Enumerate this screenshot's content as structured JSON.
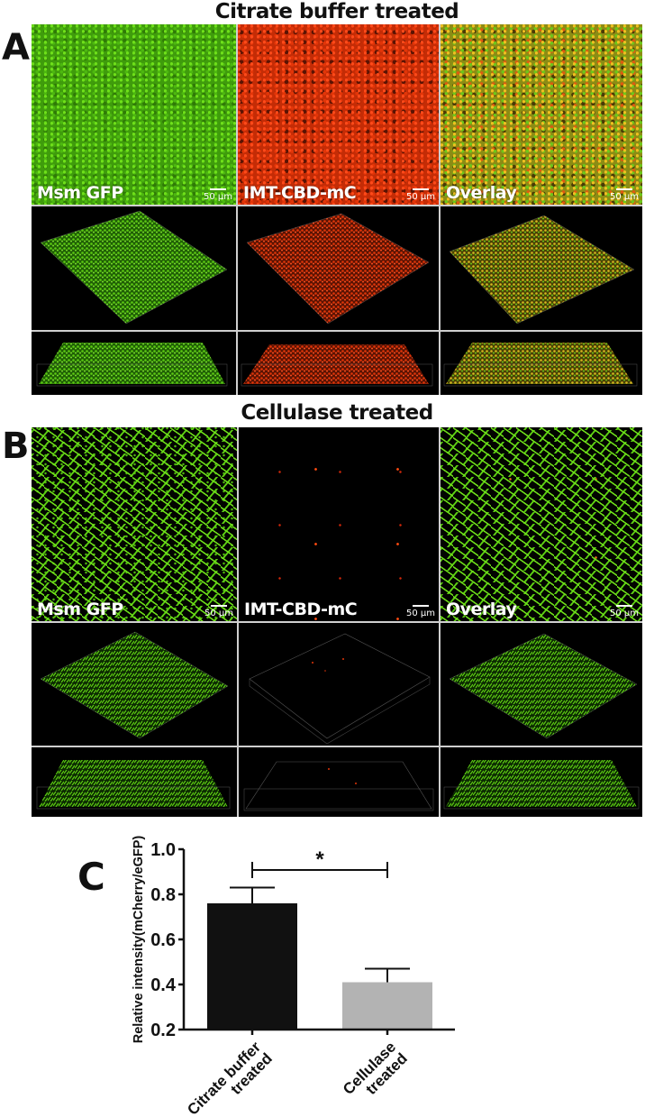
{
  "figure": {
    "panels": {
      "A": {
        "letter": "A",
        "title": "Citrate buffer treated",
        "columns": [
          {
            "label": "Msm GFP",
            "scale_bar": "50 µm",
            "channel": "green"
          },
          {
            "label": "IMT-CBD-mC",
            "scale_bar": "50 µm",
            "channel": "red"
          },
          {
            "label": "Overlay",
            "scale_bar": "50 µm",
            "channel": "overlay"
          }
        ],
        "rows": [
          "2D confocal image",
          "3D top-view projection",
          "3D side-view projection"
        ]
      },
      "B": {
        "letter": "B",
        "title": "Cellulase treated",
        "columns": [
          {
            "label": "Msm GFP",
            "scale_bar": "50 µm",
            "channel": "green"
          },
          {
            "label": "IMT-CBD-mC",
            "scale_bar": "50 µm",
            "channel": "red"
          },
          {
            "label": "Overlay",
            "scale_bar": "50 µm",
            "channel": "overlay"
          }
        ],
        "rows": [
          "2D confocal image",
          "3D top-view projection",
          "3D side-view projection"
        ]
      },
      "C": {
        "letter": "C"
      }
    },
    "colors": {
      "gfp_green": "#5ccc12",
      "mcherry_red": "#e23508",
      "overlay_yellow": "#d8b820",
      "bar_citrate": "#111111",
      "bar_cellulase": "#b3b3b3"
    }
  },
  "chart_data": {
    "type": "bar",
    "title": "",
    "categories": [
      "Citrate buffer treated",
      "Cellulase treated"
    ],
    "category_lines": [
      [
        "Citrate buffer",
        "treated"
      ],
      [
        "Cellulase",
        "treated"
      ]
    ],
    "values": [
      0.76,
      0.41
    ],
    "error_bars_upper": [
      0.07,
      0.06
    ],
    "bar_colors": [
      "#111111",
      "#b3b3b3"
    ],
    "xlabel": "",
    "ylabel": "Relative intensity(mCherry/eGFP)",
    "ylim": [
      0.2,
      1.0
    ],
    "yticks": [
      "0.2",
      "0.4",
      "0.6",
      "0.8",
      "1.0"
    ],
    "grid": false,
    "significance": {
      "between": [
        0,
        1
      ],
      "label": "*",
      "y": 0.91
    }
  }
}
